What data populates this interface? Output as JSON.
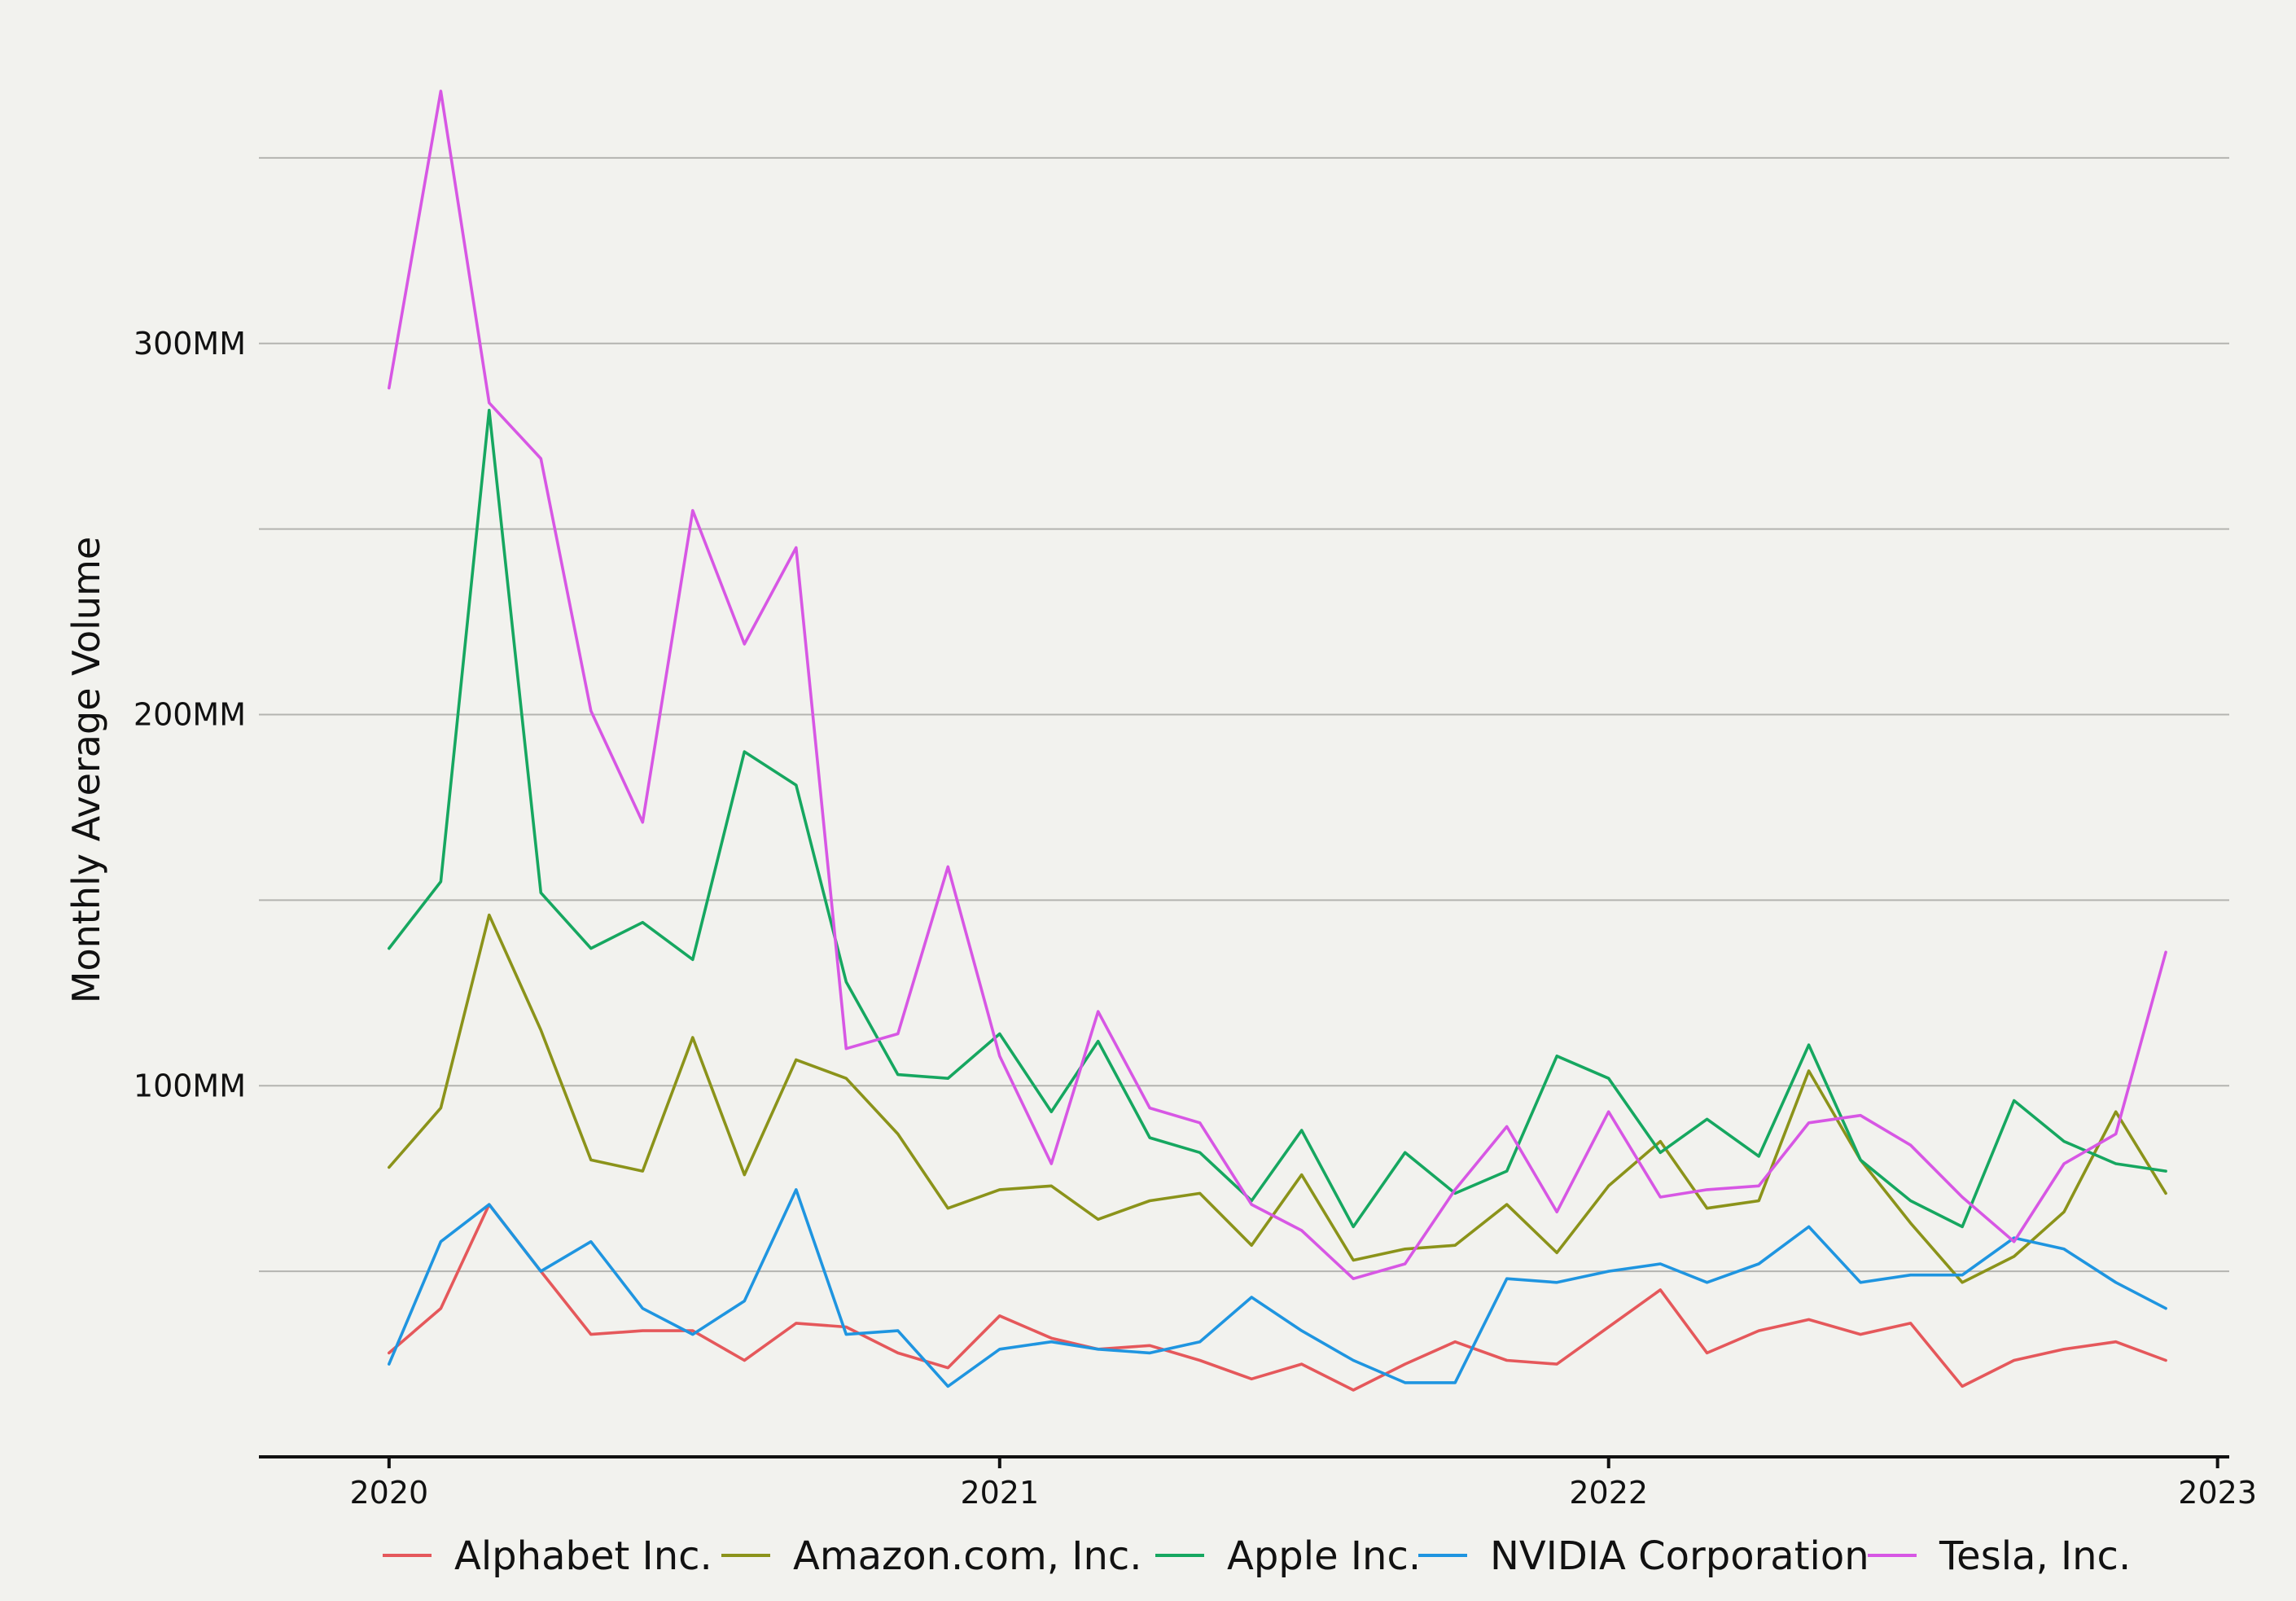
{
  "chart_data": {
    "type": "line",
    "title": "",
    "xlabel": "",
    "ylabel": "Monthly Average Volume",
    "x_ticks": [
      "2020",
      "2021",
      "2022",
      "2023"
    ],
    "y_ticks": [
      {
        "value": 50000000,
        "label": ""
      },
      {
        "value": 100000000,
        "label": "100MM"
      },
      {
        "value": 150000000,
        "label": ""
      },
      {
        "value": 200000000,
        "label": "200MM"
      },
      {
        "value": 250000000,
        "label": ""
      },
      {
        "value": 300000000,
        "label": "300MM"
      },
      {
        "value": 350000000,
        "label": ""
      }
    ],
    "ylim": [
      0,
      375000000
    ],
    "xlim": [
      "2019-10-15",
      "2023-01-08"
    ],
    "grid": "horizontal",
    "legend_position": "bottom",
    "x": [
      "2020-01",
      "2020-02",
      "2020-03",
      "2020-04",
      "2020-05",
      "2020-06",
      "2020-07",
      "2020-08",
      "2020-09",
      "2020-10",
      "2020-11",
      "2020-12",
      "2021-01",
      "2021-02",
      "2021-03",
      "2021-04",
      "2021-05",
      "2021-06",
      "2021-07",
      "2021-08",
      "2021-09",
      "2021-10",
      "2021-11",
      "2021-12",
      "2022-01",
      "2022-02",
      "2022-03",
      "2022-04",
      "2022-05",
      "2022-06",
      "2022-07",
      "2022-08",
      "2022-09",
      "2022-10",
      "2022-11",
      "2022-12"
    ],
    "series": [
      {
        "name": "Alphabet Inc.",
        "color": "#e5585b",
        "values": [
          28,
          40,
          68,
          50,
          33,
          34,
          34,
          26,
          36,
          35,
          28,
          24,
          38,
          32,
          29,
          30,
          26,
          21,
          25,
          18,
          25,
          31,
          26,
          25,
          35,
          45,
          28,
          34,
          37,
          33,
          36,
          19,
          26,
          29,
          31,
          26
        ]
      },
      {
        "name": "Amazon.com, Inc.",
        "color": "#8b931a",
        "values": [
          78,
          94,
          146,
          115,
          80,
          77,
          113,
          76,
          107,
          102,
          87,
          67,
          72,
          73,
          64,
          69,
          71,
          57,
          76,
          53,
          56,
          57,
          68,
          55,
          73,
          85,
          67,
          69,
          104,
          80,
          63,
          47,
          54,
          66,
          93,
          71
        ]
      },
      {
        "name": "Apple Inc.",
        "color": "#16a760",
        "values": [
          137,
          155,
          282,
          152,
          137,
          144,
          134,
          190,
          181,
          128,
          103,
          102,
          114,
          93,
          112,
          86,
          82,
          69,
          88,
          62,
          82,
          71,
          77,
          108,
          102,
          82,
          91,
          81,
          111,
          80,
          69,
          62,
          96,
          85,
          79,
          77
        ]
      },
      {
        "name": "NVIDIA Corporation",
        "color": "#1f95e0",
        "values": [
          25,
          58,
          68,
          50,
          58,
          40,
          33,
          42,
          72,
          33,
          34,
          19,
          29,
          31,
          29,
          28,
          31,
          43,
          34,
          26,
          20,
          20,
          48,
          47,
          50,
          52,
          47,
          52,
          62,
          47,
          49,
          49,
          59,
          56,
          47,
          40
        ]
      },
      {
        "name": "Tesla, Inc.",
        "color": "#d757e4",
        "values": [
          288,
          368,
          284,
          269,
          201,
          171,
          255,
          219,
          245,
          110,
          114,
          159,
          108,
          79,
          120,
          94,
          90,
          68,
          61,
          48,
          52,
          72,
          89,
          66,
          93,
          70,
          72,
          73,
          90,
          92,
          84,
          70,
          58,
          79,
          87,
          136
        ]
      }
    ]
  }
}
